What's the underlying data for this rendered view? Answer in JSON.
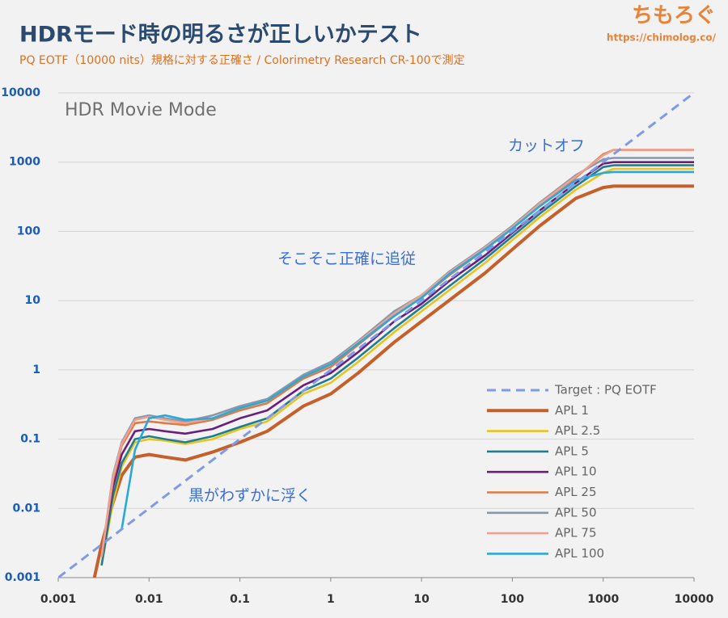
{
  "header": {
    "logo": "ちもろぐ",
    "url": "https://chimolog.co/"
  },
  "chart_data": {
    "type": "line",
    "title": "HDRモード時の明るさが正しいかテスト",
    "subtitle": "PQ EOTF（10000 nits）規格に対する正確さ / Colorimetry Research CR-100で測定",
    "panel_label": "HDR Movie Mode",
    "annotations": [
      "カットオフ",
      "そこそこ正確に追従",
      "黒がわずかに浮く"
    ],
    "log_x": true,
    "log_y": true,
    "grid": true,
    "legend": "lower right",
    "xlim": [
      0.001,
      10000
    ],
    "ylim": [
      0.001,
      10000
    ],
    "xticks": [
      0.001,
      0.01,
      0.1,
      1,
      10,
      100,
      1000,
      10000
    ],
    "yticks": [
      0.001,
      0.01,
      0.1,
      1,
      10,
      100,
      1000,
      10000
    ],
    "x": [
      0.001,
      0.0025,
      0.003,
      0.004,
      0.005,
      0.007,
      0.01,
      0.015,
      0.025,
      0.05,
      0.1,
      0.2,
      0.5,
      1,
      2,
      5,
      10,
      20,
      50,
      100,
      200,
      500,
      1000,
      1300,
      2000,
      5000,
      10000
    ],
    "series": [
      {
        "name": "Target : PQ EOTF",
        "color": "#7f9be6",
        "dashed": true,
        "values": [
          0.001,
          0.0025,
          0.003,
          0.004,
          0.005,
          0.007,
          0.01,
          0.015,
          0.025,
          0.05,
          0.1,
          0.2,
          0.5,
          1,
          2,
          5,
          10,
          20,
          50,
          100,
          200,
          500,
          1000,
          1300,
          2000,
          5000,
          10000
        ]
      },
      {
        "name": "APL 1",
        "color": "#c5602a",
        "values": [
          null,
          0.001,
          0.003,
          0.012,
          0.03,
          0.055,
          0.06,
          0.055,
          0.05,
          0.065,
          0.09,
          0.13,
          0.3,
          0.45,
          0.9,
          2.5,
          5,
          10,
          25,
          55,
          120,
          300,
          430,
          450,
          450,
          450,
          450
        ]
      },
      {
        "name": "APL 2.5",
        "color": "#e8c420",
        "values": [
          null,
          null,
          0.0015,
          0.012,
          0.04,
          0.09,
          0.1,
          0.095,
          0.085,
          0.1,
          0.14,
          0.18,
          0.45,
          0.65,
          1.3,
          3.5,
          7,
          14,
          35,
          75,
          160,
          400,
          700,
          800,
          800,
          800,
          800
        ]
      },
      {
        "name": "APL 5",
        "color": "#1f7f8f",
        "values": [
          null,
          null,
          0.0015,
          0.015,
          0.045,
          0.1,
          0.11,
          0.1,
          0.09,
          0.11,
          0.15,
          0.2,
          0.5,
          0.75,
          1.5,
          4,
          8,
          16,
          40,
          85,
          180,
          450,
          850,
          900,
          900,
          900,
          900
        ]
      },
      {
        "name": "APL 10",
        "color": "#6a1f7a",
        "values": [
          null,
          null,
          0.002,
          0.02,
          0.06,
          0.13,
          0.14,
          0.13,
          0.12,
          0.14,
          0.2,
          0.26,
          0.6,
          0.9,
          1.8,
          5,
          9,
          19,
          45,
          95,
          200,
          500,
          950,
          1000,
          1000,
          1000,
          1000
        ]
      },
      {
        "name": "APL 25",
        "color": "#e07a44",
        "values": [
          null,
          null,
          0.002,
          0.025,
          0.08,
          0.17,
          0.18,
          0.17,
          0.16,
          0.19,
          0.26,
          0.33,
          0.75,
          1.1,
          2.3,
          6,
          11,
          23,
          55,
          110,
          240,
          600,
          1300,
          1500,
          1500,
          1500,
          1500
        ]
      },
      {
        "name": "APL 50",
        "color": "#8898aa",
        "values": [
          null,
          null,
          0.002,
          0.03,
          0.09,
          0.2,
          0.22,
          0.2,
          0.18,
          0.22,
          0.3,
          0.38,
          0.85,
          1.3,
          2.6,
          7,
          12,
          26,
          60,
          120,
          260,
          650,
          1100,
          1150,
          1150,
          1150,
          1150
        ]
      },
      {
        "name": "APL 75",
        "color": "#f0a090",
        "values": [
          null,
          null,
          0.002,
          0.028,
          0.085,
          0.19,
          0.21,
          0.19,
          0.17,
          0.2,
          0.28,
          0.36,
          0.8,
          1.2,
          2.5,
          6.5,
          12,
          25,
          58,
          115,
          250,
          620,
          1250,
          1500,
          1500,
          1500,
          1500
        ]
      },
      {
        "name": "APL 100",
        "color": "#2aa8d8",
        "values": [
          null,
          null,
          null,
          null,
          0.005,
          0.07,
          0.2,
          0.22,
          0.19,
          0.2,
          0.28,
          0.36,
          0.8,
          1.2,
          2.4,
          6,
          11,
          24,
          55,
          110,
          230,
          550,
          700,
          720,
          720,
          720,
          720
        ]
      }
    ]
  }
}
